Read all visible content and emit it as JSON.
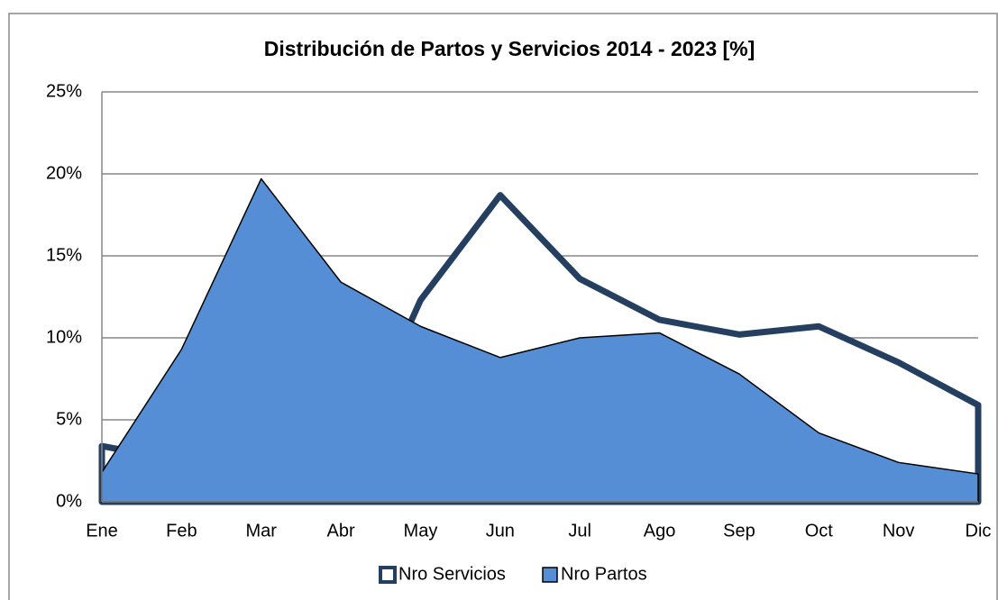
{
  "chart_data": {
    "type": "area",
    "title": "Distribución de Partos y Servicios 2014 - 2023 [%]",
    "categories": [
      "Ene",
      "Feb",
      "Mar",
      "Abr",
      "May",
      "Jun",
      "Jul",
      "Ago",
      "Sep",
      "Oct",
      "Nov",
      "Dic"
    ],
    "series": [
      {
        "name": "Nro Servicios",
        "color": "#243f60",
        "fill": "#ffffff",
        "values": [
          3.4,
          2.5,
          1.5,
          1.5,
          12.3,
          18.7,
          13.6,
          11.1,
          10.2,
          10.7,
          8.5,
          5.9
        ]
      },
      {
        "name": "Nro Partos",
        "color": "#000000",
        "fill": "#558ed5",
        "values": [
          1.8,
          9.3,
          19.7,
          13.4,
          10.7,
          8.8,
          10.0,
          10.3,
          7.8,
          4.2,
          2.4,
          1.7
        ]
      }
    ],
    "ylim": [
      0,
      25
    ],
    "yticks": [
      {
        "value": 0,
        "label": "0%"
      },
      {
        "value": 5,
        "label": "5%"
      },
      {
        "value": 10,
        "label": "10%"
      },
      {
        "value": 15,
        "label": "15%"
      },
      {
        "value": 20,
        "label": "20%"
      },
      {
        "value": 25,
        "label": "25%"
      }
    ],
    "grid": true,
    "legend": "bottom"
  }
}
